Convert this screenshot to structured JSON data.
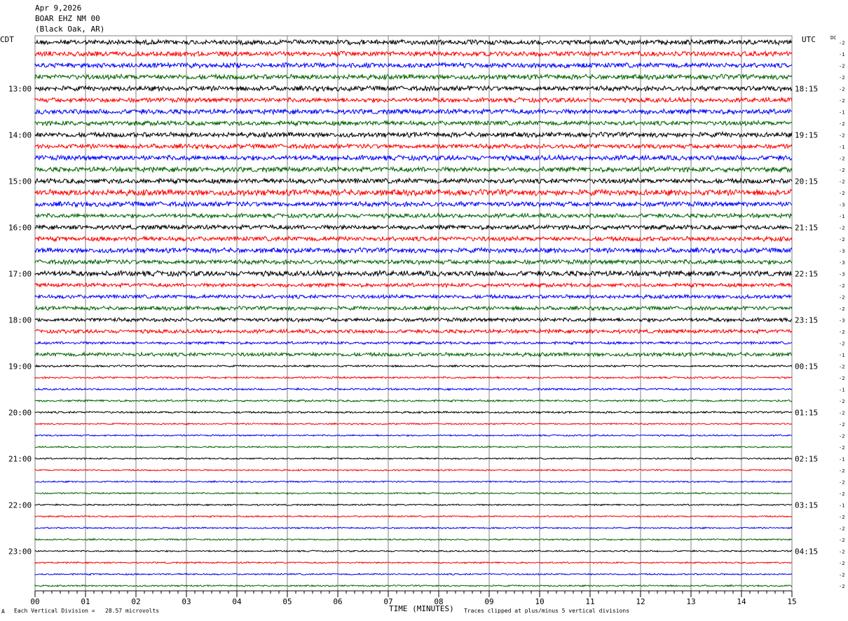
{
  "header": {
    "date": "Apr 9,2026",
    "station": "BOAR EHZ NM 00",
    "location": "(Black Oak, AR)"
  },
  "left_tz": "CDT",
  "right_tz": "UTC",
  "dc_label": "DC",
  "footer": {
    "scale": "Each Vertical Division =   28.57 microvolts",
    "clip": "Traces clipped at plus/minus 5 vertical divisions",
    "corner_mark": "A"
  },
  "colors": {
    "black": "#000000",
    "red": "#ff0000",
    "blue": "#0000ff",
    "green": "#006400",
    "grid": "#808080"
  },
  "chart_data": {
    "type": "line",
    "title": "",
    "xlabel": "TIME (MINUTES)",
    "xlim": [
      0,
      15
    ],
    "x_ticks": [
      "00",
      "01",
      "02",
      "03",
      "04",
      "05",
      "06",
      "07",
      "08",
      "09",
      "10",
      "11",
      "12",
      "13",
      "14",
      "15"
    ],
    "left_hour_labels": [
      "13:00",
      "14:00",
      "15:00",
      "16:00",
      "17:00",
      "18:00",
      "19:00",
      "20:00",
      "21:00",
      "22:00",
      "23:00"
    ],
    "right_hour_labels": [
      "18:15",
      "19:15",
      "20:15",
      "21:15",
      "22:15",
      "23:15",
      "00:15",
      "01:15",
      "02:15",
      "03:15",
      "04:15"
    ],
    "trace_color_cycle": [
      "black",
      "red",
      "blue",
      "green"
    ],
    "dc_offsets": [
      "-2",
      "-1",
      "-2",
      "-2",
      "-2",
      "-2",
      "-1",
      "-2",
      "-2",
      "-1",
      "-2",
      "-2",
      "-2",
      "-2",
      "-3",
      "-1",
      "-2",
      "-2",
      "-3",
      "-3",
      "-3",
      "-2",
      "-2",
      "-2",
      "-3",
      "-2",
      "-2",
      "-1",
      "-2",
      "-2",
      "-1",
      "-2",
      "-2",
      "-2",
      "-2",
      "-2",
      "-1",
      "-2",
      "-2",
      "-2",
      "-1",
      "-2",
      "-2",
      "-2",
      "-2",
      "-2",
      "-2",
      "-2"
    ],
    "trace_amplitude_divisions": [
      1.3,
      1.3,
      1.3,
      1.3,
      1.3,
      1.2,
      1.3,
      1.2,
      1.3,
      1.2,
      1.3,
      1.3,
      1.3,
      1.6,
      1.3,
      1.1,
      1.2,
      1.2,
      1.3,
      1.2,
      1.4,
      1.0,
      1.0,
      1.0,
      1.0,
      1.0,
      0.7,
      1.0,
      0.5,
      0.5,
      0.5,
      0.5,
      0.5,
      0.4,
      0.4,
      0.4,
      0.4,
      0.4,
      0.4,
      0.4,
      0.4,
      0.4,
      0.4,
      0.4,
      0.4,
      0.4,
      0.4,
      0.4
    ]
  }
}
